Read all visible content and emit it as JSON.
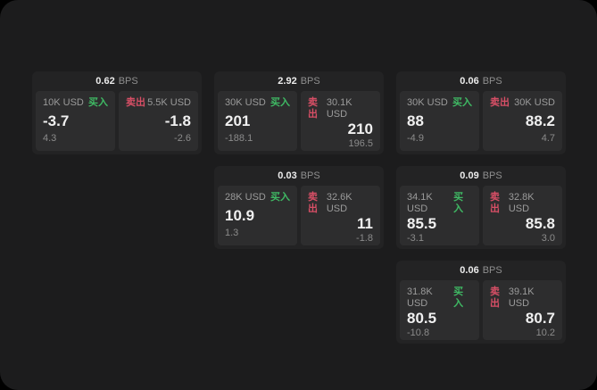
{
  "labels": {
    "bps_unit": "BPS",
    "buy": "买入",
    "sell": "卖出"
  },
  "colors": {
    "screen_bg": "#1c1c1d",
    "card_bg": "#232324",
    "panel_bg": "#2d2d2e",
    "buy_accent": "#3fba64",
    "sell_accent": "#d84f66"
  },
  "cards": [
    {
      "bps": "0.62",
      "buy": {
        "amount": "10K USD",
        "price": "-3.7",
        "delta": "4.3"
      },
      "sell": {
        "amount": "5.5K USD",
        "price": "-1.8",
        "delta": "-2.6"
      }
    },
    {
      "bps": "2.92",
      "buy": {
        "amount": "30K USD",
        "price": "201",
        "delta": "-188.1"
      },
      "sell": {
        "amount": "30.1K USD",
        "price": "210",
        "delta": "196.5"
      }
    },
    {
      "bps": "0.06",
      "buy": {
        "amount": "30K USD",
        "price": "88",
        "delta": "-4.9"
      },
      "sell": {
        "amount": "30K USD",
        "price": "88.2",
        "delta": "4.7"
      }
    },
    {
      "bps": "0.03",
      "buy": {
        "amount": "28K USD",
        "price": "10.9",
        "delta": "1.3"
      },
      "sell": {
        "amount": "32.6K USD",
        "price": "11",
        "delta": "-1.8"
      }
    },
    {
      "bps": "0.09",
      "buy": {
        "amount": "34.1K USD",
        "price": "85.5",
        "delta": "-3.1"
      },
      "sell": {
        "amount": "32.8K USD",
        "price": "85.8",
        "delta": "3.0"
      }
    },
    {
      "bps": "0.06",
      "buy": {
        "amount": "31.8K USD",
        "price": "80.5",
        "delta": "-10.8"
      },
      "sell": {
        "amount": "39.1K USD",
        "price": "80.7",
        "delta": "10.2"
      }
    }
  ]
}
